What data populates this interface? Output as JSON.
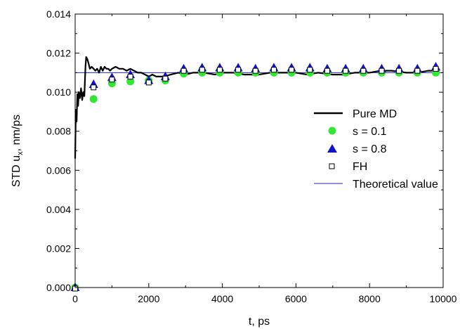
{
  "chart_data": {
    "type": "line",
    "xlabel": "t, ps",
    "ylabel_main": "STD u",
    "ylabel_sub": "x",
    "ylabel_tail": ", nm/ps",
    "xlim": [
      0,
      10000
    ],
    "ylim": [
      0,
      0.014
    ],
    "x_ticks": [
      0,
      2000,
      4000,
      6000,
      8000,
      10000
    ],
    "x_tick_labels": [
      "0",
      "2000",
      "4000",
      "6000",
      "8000",
      "10000"
    ],
    "y_ticks": [
      0,
      0.002,
      0.004,
      0.006,
      0.008,
      0.01,
      0.012,
      0.014
    ],
    "y_tick_labels": [
      "0.000",
      "0.002",
      "0.004",
      "0.006",
      "0.008",
      "0.010",
      "0.012",
      "0.014"
    ],
    "grid": false,
    "legend_position": "right-middle",
    "series": [
      {
        "name": "Pure MD",
        "marker": "line",
        "color": "#000000",
        "x": [
          0,
          20,
          40,
          60,
          80,
          100,
          130,
          160,
          190,
          220,
          250,
          280,
          300,
          330,
          360,
          400,
          450,
          500,
          550,
          600,
          650,
          700,
          750,
          800,
          850,
          900,
          950,
          1000,
          1100,
          1200,
          1300,
          1400,
          1500,
          1600,
          1700,
          1800,
          1900,
          2000,
          2100,
          2200,
          2400,
          2600,
          2800,
          3000,
          3200,
          3500,
          3800,
          4000,
          4300,
          4600,
          5000,
          5300,
          5600,
          6000,
          6300,
          6600,
          7000,
          7300,
          7600,
          8000,
          8300,
          8600,
          9000,
          9300,
          9600,
          9900
        ],
        "y": [
          0.0066,
          0.0091,
          0.0085,
          0.0099,
          0.0093,
          0.01,
          0.0097,
          0.0102,
          0.0096,
          0.01,
          0.0098,
          0.0113,
          0.0118,
          0.0117,
          0.0115,
          0.0112,
          0.0113,
          0.0112,
          0.0111,
          0.0112,
          0.011,
          0.0113,
          0.0111,
          0.0113,
          0.0112,
          0.0112,
          0.0111,
          0.0112,
          0.0113,
          0.0112,
          0.0112,
          0.0111,
          0.0112,
          0.0111,
          0.011,
          0.011,
          0.0109,
          0.0108,
          0.0109,
          0.0108,
          0.0108,
          0.0109,
          0.011,
          0.0109,
          0.011,
          0.011,
          0.0109,
          0.011,
          0.011,
          0.0109,
          0.0109,
          0.011,
          0.011,
          0.011,
          0.0109,
          0.011,
          0.0109,
          0.0109,
          0.011,
          0.011,
          0.0111,
          0.0111,
          0.011,
          0.011,
          0.0111,
          0.0111
        ]
      },
      {
        "name": "s = 0.1",
        "marker": "circle",
        "color": "#33e633",
        "x": [
          0,
          500,
          1000,
          1500,
          2000,
          2450,
          2950,
          3450,
          3930,
          4430,
          4900,
          5400,
          5880,
          6380,
          6850,
          7350,
          7830,
          8330,
          8800,
          9300,
          9800
        ],
        "y": [
          0.0,
          0.00965,
          0.01045,
          0.01055,
          0.0106,
          0.0106,
          0.01095,
          0.011,
          0.011,
          0.011,
          0.011,
          0.011,
          0.011,
          0.011,
          0.011,
          0.011,
          0.011,
          0.011,
          0.011,
          0.011,
          0.011
        ]
      },
      {
        "name": "s = 0.8",
        "marker": "triangle",
        "color": "#1010d0",
        "x": [
          0,
          500,
          1000,
          1500,
          2000,
          2450,
          2950,
          3450,
          3930,
          4430,
          4900,
          5400,
          5880,
          6380,
          6850,
          7350,
          7830,
          8330,
          8800,
          9300,
          9800
        ],
        "y": [
          0.0,
          0.0104,
          0.01075,
          0.0109,
          0.0106,
          0.0108,
          0.0112,
          0.01125,
          0.01125,
          0.01125,
          0.0112,
          0.01125,
          0.01125,
          0.01125,
          0.0112,
          0.0112,
          0.0112,
          0.0112,
          0.0112,
          0.0112,
          0.0113
        ]
      },
      {
        "name": "FH",
        "marker": "square",
        "color": "#ffffff",
        "x": [
          0,
          500,
          1000,
          1500,
          2000,
          2450,
          2950,
          3450,
          3930,
          4430,
          4900,
          5400,
          5880,
          6380,
          6850,
          7350,
          7830,
          8330,
          8800,
          9300,
          9800
        ],
        "y": [
          0.0,
          0.0103,
          0.0107,
          0.01085,
          0.01055,
          0.01075,
          0.01115,
          0.0112,
          0.0112,
          0.0112,
          0.01115,
          0.0112,
          0.0112,
          0.0112,
          0.01115,
          0.01115,
          0.01115,
          0.01115,
          0.01115,
          0.01115,
          0.01125
        ]
      },
      {
        "name": "Theoretical value",
        "marker": "hline",
        "color": "#2020c0",
        "x": [
          0,
          10000
        ],
        "y": [
          0.011,
          0.011
        ]
      }
    ]
  }
}
